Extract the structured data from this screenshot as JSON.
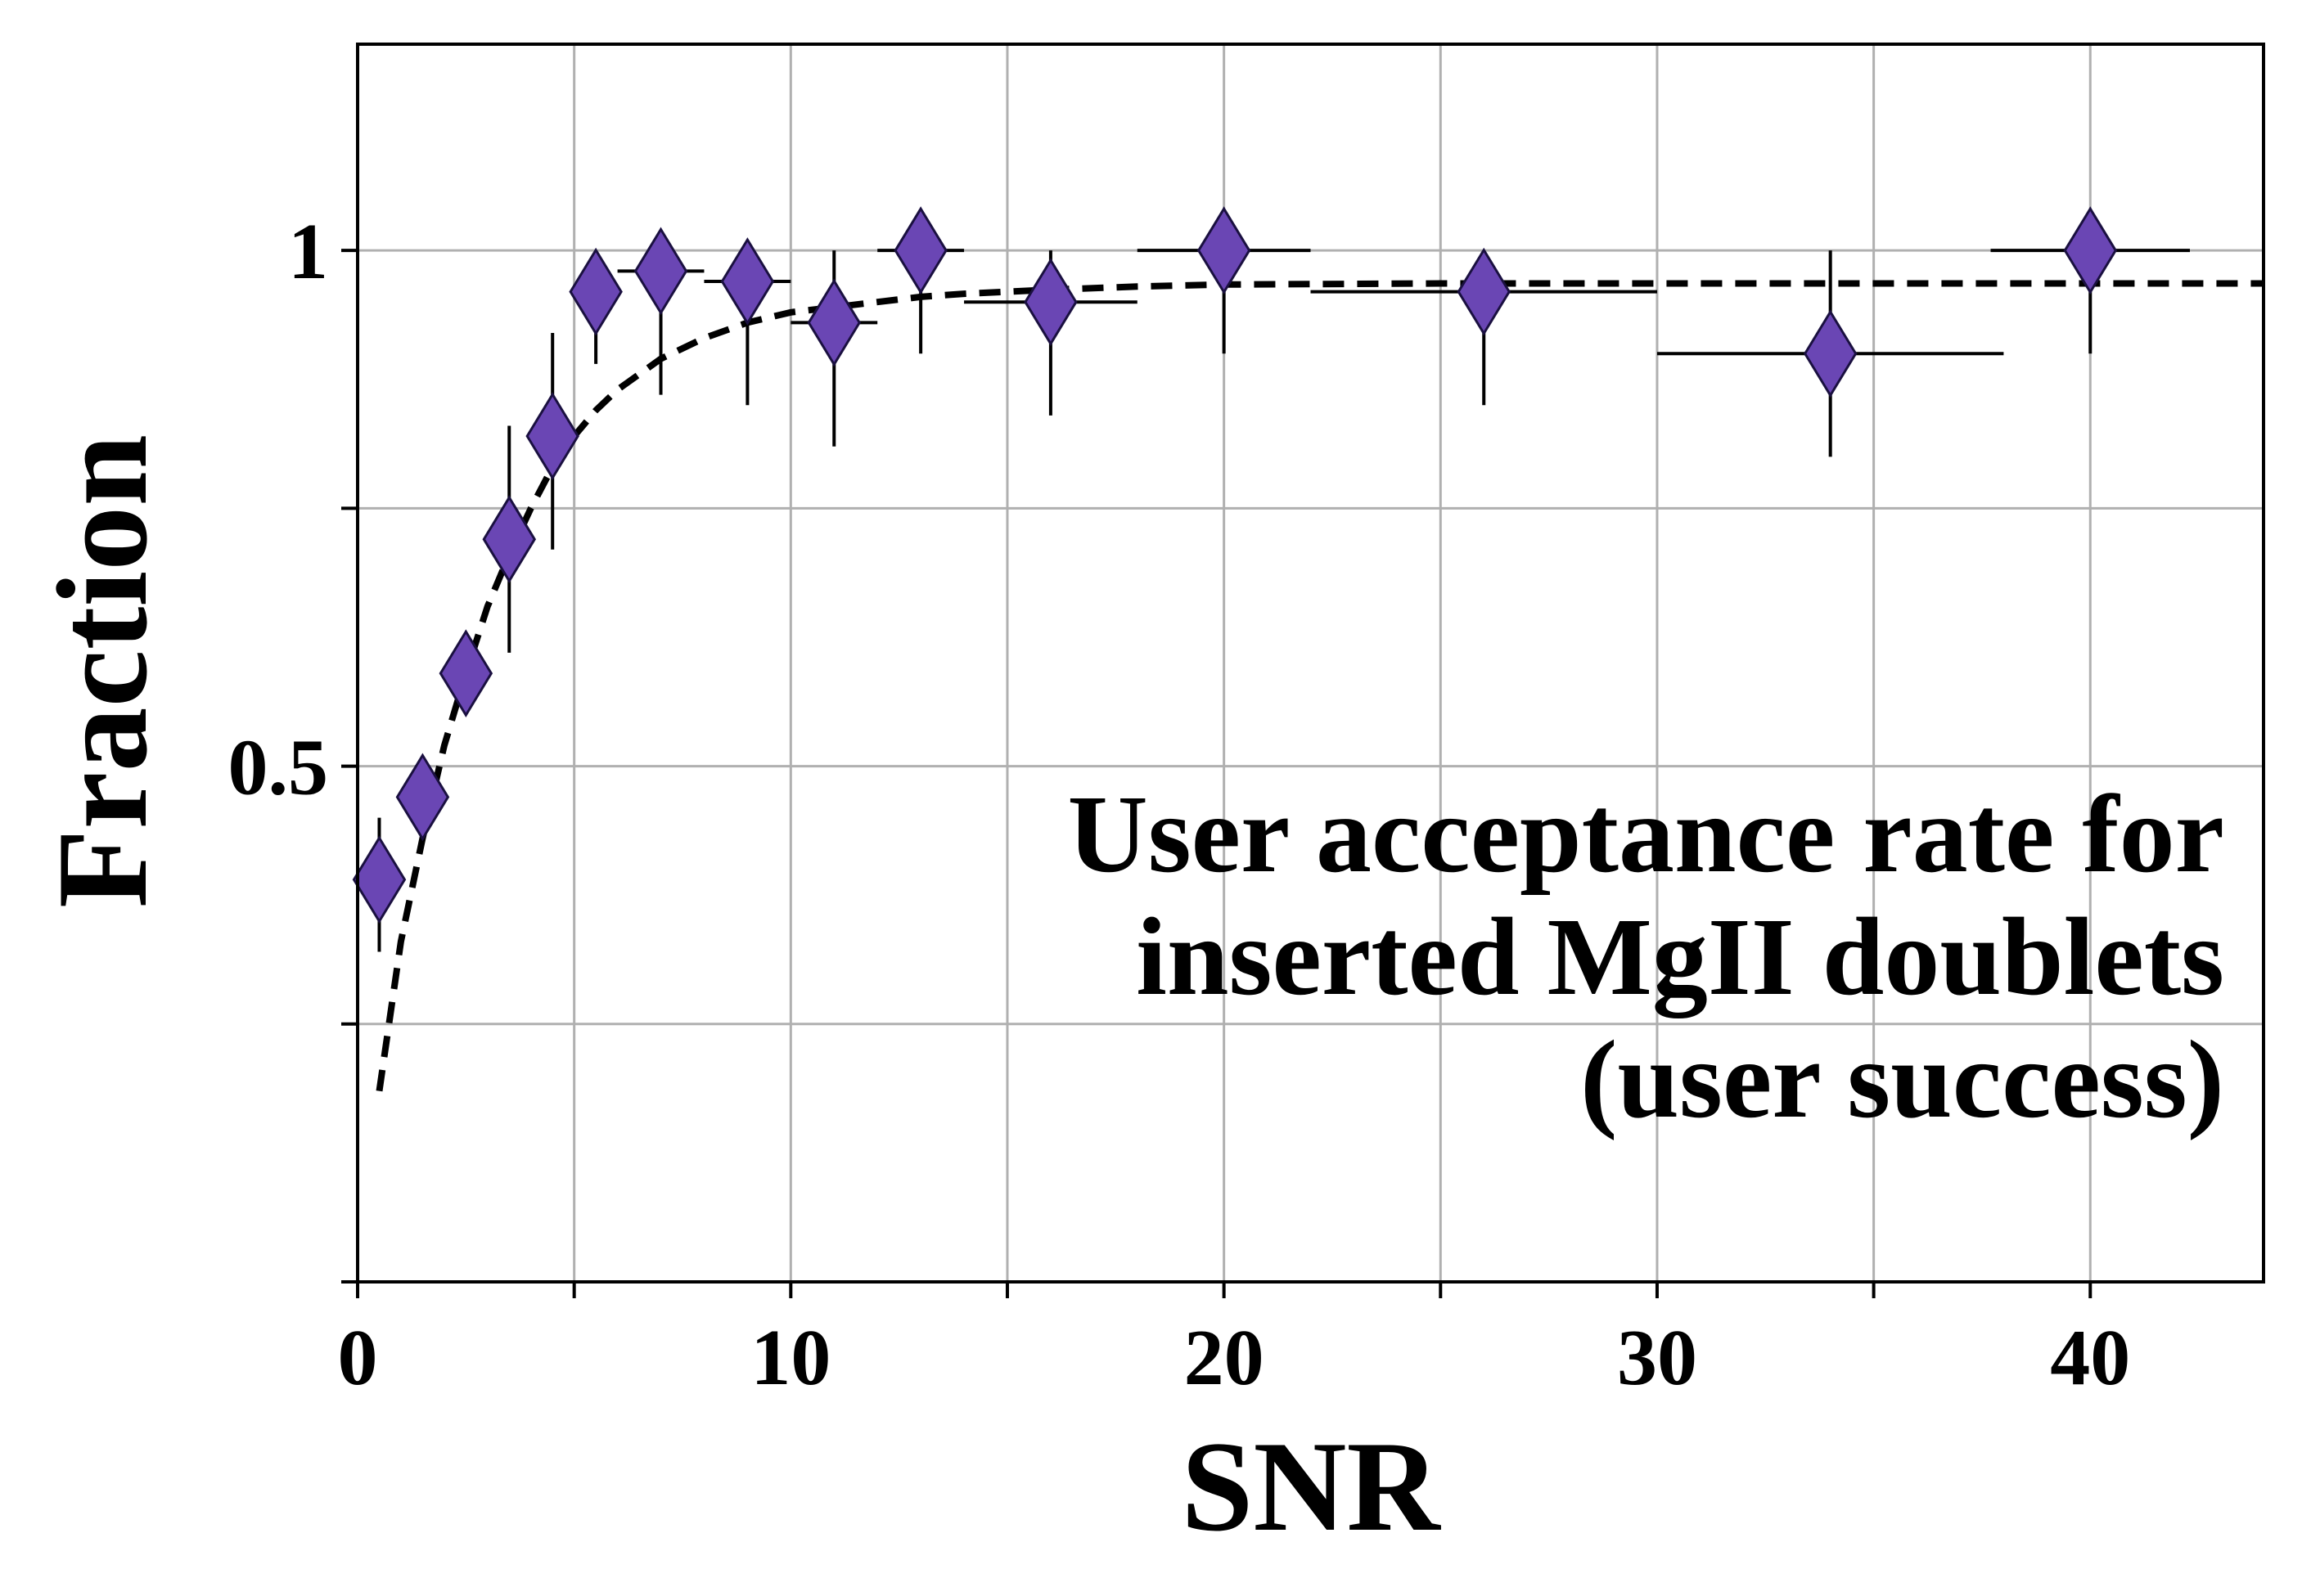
{
  "chart_data": {
    "type": "scatter",
    "xlabel": "SNR",
    "ylabel": "Fraction",
    "xlim": [
      0,
      44
    ],
    "ylim": [
      0,
      1.2
    ],
    "x_ticks": [
      0,
      10,
      20,
      30,
      40
    ],
    "x_tick_labels": [
      "0",
      "10",
      "20",
      "30",
      "40"
    ],
    "x_minor_ticks": [
      5,
      15,
      25,
      35
    ],
    "y_ticks": [
      0,
      0.25,
      0.5,
      0.75,
      1.0
    ],
    "y_tick_labels": [
      "",
      "",
      "0.5",
      "",
      "1"
    ],
    "grid": true,
    "annotation": [
      "User acceptance rate for",
      "inserted MgII doublets",
      "(user success)"
    ],
    "annotation_placement": "lower-right",
    "colors": {
      "marker": "#6a46b4",
      "marker_edge": "#1a1040",
      "fit": "#000000",
      "grid": "#b0b0b0"
    },
    "points": [
      {
        "x": 0.5,
        "y": 0.39,
        "xerr": 0.0,
        "yerr": [
          0.07,
          0.06
        ]
      },
      {
        "x": 1.5,
        "y": 0.47,
        "xerr": 0.0,
        "yerr": [
          0.0,
          0.0
        ]
      },
      {
        "x": 2.5,
        "y": 0.59,
        "xerr": 0.0,
        "yerr": [
          0.0,
          0.0
        ]
      },
      {
        "x": 3.5,
        "y": 0.72,
        "xerr": 0.0,
        "yerr": [
          0.11,
          0.11
        ]
      },
      {
        "x": 4.5,
        "y": 0.82,
        "xerr": 0.0,
        "yerr": [
          0.11,
          0.1
        ]
      },
      {
        "x": 5.5,
        "y": 0.96,
        "xerr": 0.0,
        "yerr": [
          0.07,
          0.04
        ]
      },
      {
        "x": 7.0,
        "y": 0.98,
        "xerr": 1.0,
        "yerr": [
          0.12,
          0.02
        ]
      },
      {
        "x": 9.0,
        "y": 0.97,
        "xerr": 1.0,
        "yerr": [
          0.12,
          0.03
        ]
      },
      {
        "x": 11.0,
        "y": 0.93,
        "xerr": 1.0,
        "yerr": [
          0.12,
          0.07
        ]
      },
      {
        "x": 13.0,
        "y": 1.0,
        "xerr": 1.0,
        "yerr": [
          0.1,
          0.0
        ]
      },
      {
        "x": 16.0,
        "y": 0.95,
        "xerr": 2.0,
        "yerr": [
          0.11,
          0.05
        ]
      },
      {
        "x": 20.0,
        "y": 1.0,
        "xerr": 2.0,
        "yerr": [
          0.1,
          0.0
        ]
      },
      {
        "x": 26.0,
        "y": 0.96,
        "xerr": 4.0,
        "yerr": [
          0.11,
          0.04
        ]
      },
      {
        "x": 34.0,
        "y": 0.9,
        "xerr": 4.0,
        "yerr": [
          0.1,
          0.1
        ]
      },
      {
        "x": 40.0,
        "y": 1.0,
        "xerr": 2.3,
        "yerr": [
          0.1,
          0.0
        ]
      }
    ],
    "fit_curve": {
      "style": "dashed",
      "x": [
        0.5,
        1.0,
        1.5,
        2.0,
        2.5,
        3.0,
        3.5,
        4.0,
        4.5,
        5.0,
        5.5,
        6.0,
        7.0,
        8.0,
        9.0,
        10.0,
        11.0,
        12.0,
        13.0,
        14.0,
        16.0,
        18.0,
        20.0,
        25.0,
        30.0,
        35.0,
        40.0,
        44.0
      ],
      "y": [
        0.185,
        0.33,
        0.43,
        0.52,
        0.59,
        0.655,
        0.705,
        0.75,
        0.79,
        0.82,
        0.845,
        0.865,
        0.895,
        0.915,
        0.93,
        0.94,
        0.945,
        0.95,
        0.955,
        0.958,
        0.962,
        0.965,
        0.967,
        0.968,
        0.968,
        0.968,
        0.968,
        0.968
      ]
    }
  }
}
